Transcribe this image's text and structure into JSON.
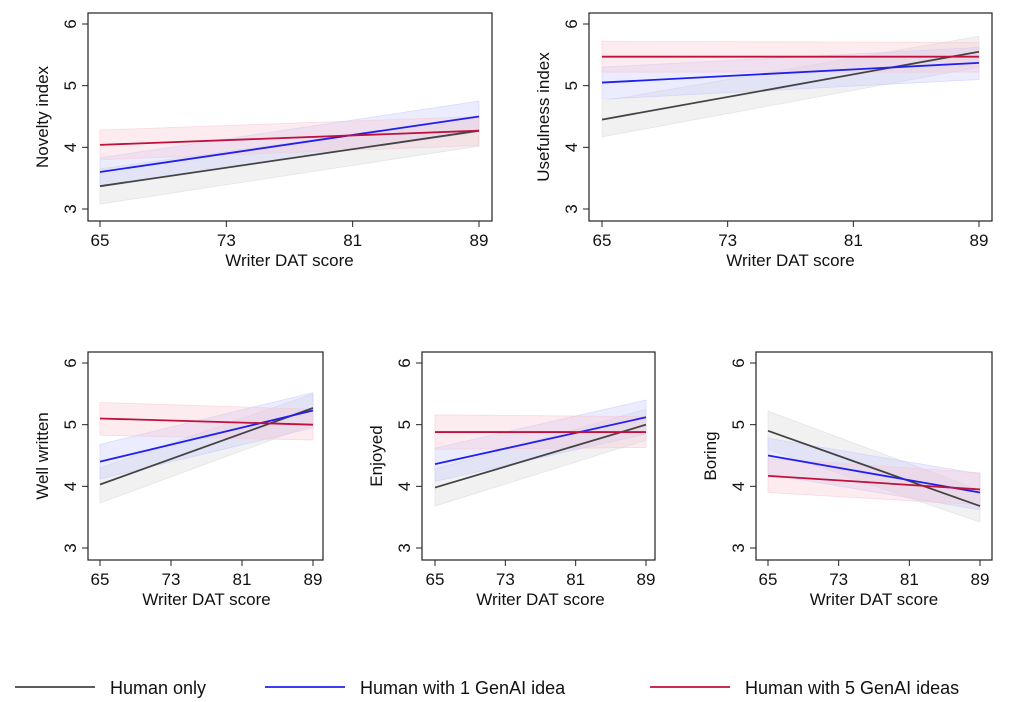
{
  "chart_data": [
    {
      "type": "line",
      "xlabel": "Writer DAT score",
      "ylabel": "Novelty index",
      "xticks": [
        65,
        73,
        81,
        89
      ],
      "yticks": [
        3,
        4,
        5,
        6
      ],
      "xlim": [
        65,
        89
      ],
      "ylim": [
        3,
        6
      ],
      "series": [
        {
          "name": "Human only",
          "x": [
            65,
            89
          ],
          "y": [
            3.37,
            4.27
          ],
          "ci_low": [
            3.08,
            4.02
          ],
          "ci_high": [
            3.65,
            4.5
          ]
        },
        {
          "name": "Human with 1 GenAI idea",
          "x": [
            65,
            89
          ],
          "y": [
            3.6,
            4.5
          ],
          "ci_low": [
            3.38,
            4.25
          ],
          "ci_high": [
            3.83,
            4.75
          ]
        },
        {
          "name": "Human with 5 GenAI ideas",
          "x": [
            65,
            89
          ],
          "y": [
            4.04,
            4.27
          ],
          "ci_low": [
            3.8,
            4.03
          ],
          "ci_high": [
            4.28,
            4.5
          ]
        }
      ]
    },
    {
      "type": "line",
      "xlabel": "Writer DAT score",
      "ylabel": "Usefulness index",
      "xticks": [
        65,
        73,
        81,
        89
      ],
      "yticks": [
        3,
        4,
        5,
        6
      ],
      "xlim": [
        65,
        89
      ],
      "ylim": [
        3,
        6
      ],
      "series": [
        {
          "name": "Human only",
          "x": [
            65,
            89
          ],
          "y": [
            4.45,
            5.55
          ],
          "ci_low": [
            4.17,
            5.3
          ],
          "ci_high": [
            4.75,
            5.8
          ]
        },
        {
          "name": "Human with 1 GenAI idea",
          "x": [
            65,
            89
          ],
          "y": [
            5.05,
            5.37
          ],
          "ci_low": [
            4.78,
            5.1
          ],
          "ci_high": [
            5.3,
            5.62
          ]
        },
        {
          "name": "Human with 5 GenAI ideas",
          "x": [
            65,
            89
          ],
          "y": [
            5.47,
            5.47
          ],
          "ci_low": [
            5.22,
            5.22
          ],
          "ci_high": [
            5.72,
            5.7
          ]
        }
      ]
    },
    {
      "type": "line",
      "xlabel": "Writer DAT score",
      "ylabel": "Well written",
      "xticks": [
        65,
        73,
        81,
        89
      ],
      "yticks": [
        3,
        4,
        5,
        6
      ],
      "xlim": [
        65,
        89
      ],
      "ylim": [
        3,
        6
      ],
      "series": [
        {
          "name": "Human only",
          "x": [
            65,
            89
          ],
          "y": [
            4.03,
            5.27
          ],
          "ci_low": [
            3.73,
            5.0
          ],
          "ci_high": [
            4.3,
            5.5
          ]
        },
        {
          "name": "Human with 1 GenAI idea",
          "x": [
            65,
            89
          ],
          "y": [
            4.4,
            5.23
          ],
          "ci_low": [
            4.12,
            4.95
          ],
          "ci_high": [
            4.68,
            5.52
          ]
        },
        {
          "name": "Human with 5 GenAI ideas",
          "x": [
            65,
            89
          ],
          "y": [
            5.1,
            5.0
          ],
          "ci_low": [
            4.83,
            4.75
          ],
          "ci_high": [
            5.36,
            5.25
          ]
        }
      ]
    },
    {
      "type": "line",
      "xlabel": "Writer DAT score",
      "ylabel": "Enjoyed",
      "xticks": [
        65,
        73,
        81,
        89
      ],
      "yticks": [
        3,
        4,
        5,
        6
      ],
      "xlim": [
        65,
        89
      ],
      "ylim": [
        3,
        6
      ],
      "series": [
        {
          "name": "Human only",
          "x": [
            65,
            89
          ],
          "y": [
            3.98,
            5.0
          ],
          "ci_low": [
            3.68,
            4.75
          ],
          "ci_high": [
            4.28,
            5.25
          ]
        },
        {
          "name": "Human with 1 GenAI idea",
          "x": [
            65,
            89
          ],
          "y": [
            4.36,
            5.12
          ],
          "ci_low": [
            4.08,
            4.85
          ],
          "ci_high": [
            4.62,
            5.4
          ]
        },
        {
          "name": "Human with 5 GenAI ideas",
          "x": [
            65,
            89
          ],
          "y": [
            4.88,
            4.88
          ],
          "ci_low": [
            4.6,
            4.63
          ],
          "ci_high": [
            5.16,
            5.13
          ]
        }
      ]
    },
    {
      "type": "line",
      "xlabel": "Writer DAT score",
      "ylabel": "Boring",
      "xticks": [
        65,
        73,
        81,
        89
      ],
      "yticks": [
        3,
        4,
        5,
        6
      ],
      "xlim": [
        65,
        89
      ],
      "ylim": [
        3,
        6
      ],
      "series": [
        {
          "name": "Human only",
          "x": [
            65,
            89
          ],
          "y": [
            4.9,
            3.68
          ],
          "ci_low": [
            4.6,
            3.42
          ],
          "ci_high": [
            5.22,
            3.94
          ]
        },
        {
          "name": "Human with 1 GenAI idea",
          "x": [
            65,
            89
          ],
          "y": [
            4.5,
            3.9
          ],
          "ci_low": [
            4.2,
            3.62
          ],
          "ci_high": [
            4.78,
            4.2
          ]
        },
        {
          "name": "Human with 5 GenAI ideas",
          "x": [
            65,
            89
          ],
          "y": [
            4.17,
            3.95
          ],
          "ci_low": [
            3.9,
            3.7
          ],
          "ci_high": [
            4.45,
            4.22
          ]
        }
      ]
    }
  ],
  "legend": {
    "placement": "bottom",
    "items": [
      {
        "label": "Human only",
        "color": "#444444"
      },
      {
        "label": "Human with 1 GenAI idea",
        "color": "#2020ee"
      },
      {
        "label": "Human with 5 GenAI ideas",
        "color": "#c0103c"
      }
    ]
  },
  "colors": {
    "band_human": "#d8d8d8",
    "band_one": "#c8c8ff",
    "band_five": "#f5c8d2"
  }
}
